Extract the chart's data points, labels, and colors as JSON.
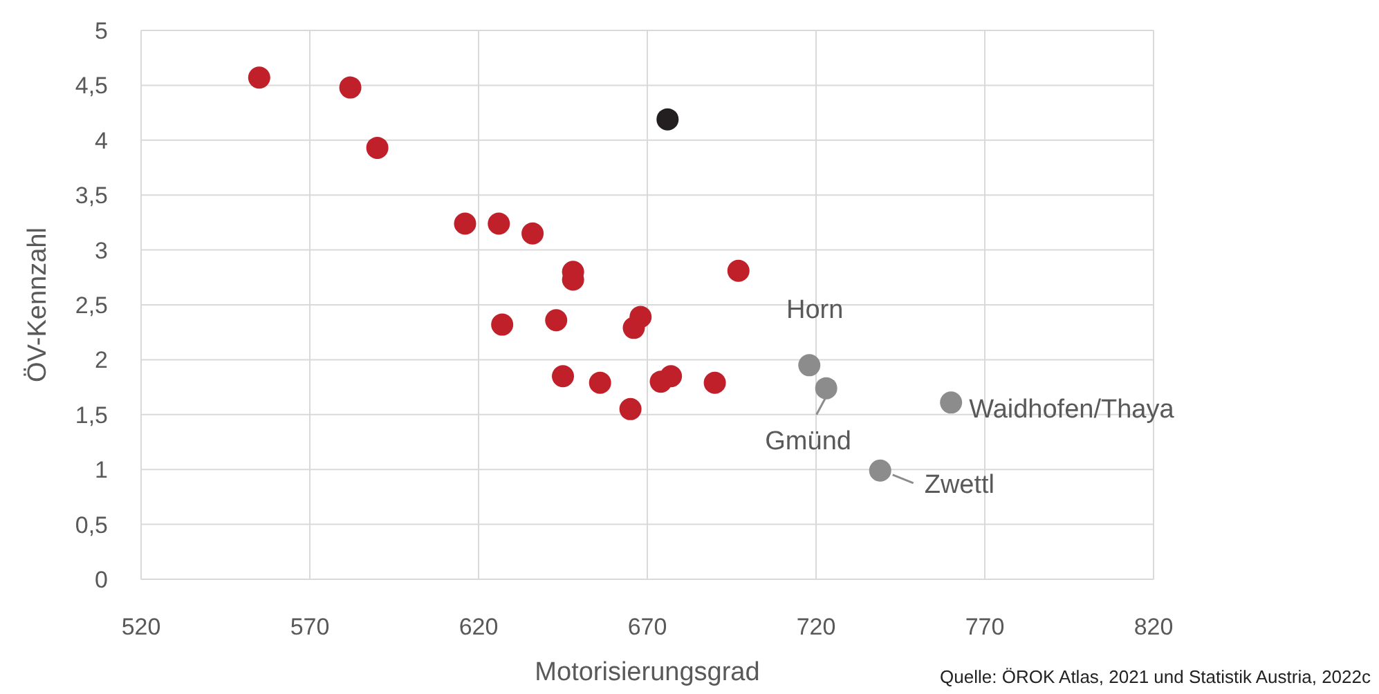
{
  "chart_data": {
    "type": "scatter",
    "xlabel": "Motorisierungsgrad",
    "ylabel": "ÖV-Kennzahl",
    "xlim": [
      520,
      820
    ],
    "xticks": [
      520,
      570,
      620,
      670,
      720,
      770,
      820
    ],
    "ylim": [
      0,
      5
    ],
    "yticks": [
      0,
      {
        "value": 0.5,
        "label": "0,5"
      },
      1,
      {
        "value": 1.5,
        "label": "1,5"
      },
      2,
      {
        "value": 2.5,
        "label": "2,5"
      },
      3,
      {
        "value": 3.5,
        "label": "3,5"
      },
      4,
      {
        "value": 4.5,
        "label": "4,5"
      },
      5
    ],
    "grid": true,
    "marker": "circle",
    "series": [
      {
        "color": "#c0202a",
        "x": [
          555,
          582,
          590,
          616,
          626,
          636,
          648,
          648,
          627,
          643,
          668,
          666,
          697,
          645,
          656,
          665,
          674,
          677,
          690
        ],
        "values": [
          4.57,
          4.48,
          3.93,
          3.24,
          3.24,
          3.15,
          2.8,
          2.73,
          2.32,
          2.36,
          2.39,
          2.29,
          2.81,
          1.85,
          1.79,
          1.55,
          1.8,
          1.85,
          1.79
        ]
      },
      {
        "color": "#231f20",
        "x": [
          676
        ],
        "values": [
          4.19
        ]
      },
      {
        "color": "#8c8c8c",
        "x": [
          718,
          723,
          760,
          739
        ],
        "values": [
          1.95,
          1.74,
          1.61,
          0.99
        ]
      }
    ],
    "annotations": [
      {
        "text": "Horn",
        "x": 718,
        "y": 1.95
      },
      {
        "text": "Gmünd",
        "x": 723,
        "y": 1.74
      },
      {
        "text": "Waidhofen/Thaya",
        "x": 760,
        "y": 1.61
      },
      {
        "text": "Zwettl",
        "x": 739,
        "y": 0.99
      },
      "Quelle: ÖROK Atlas, 2021 und Statistik Austria, 2022c"
    ]
  }
}
